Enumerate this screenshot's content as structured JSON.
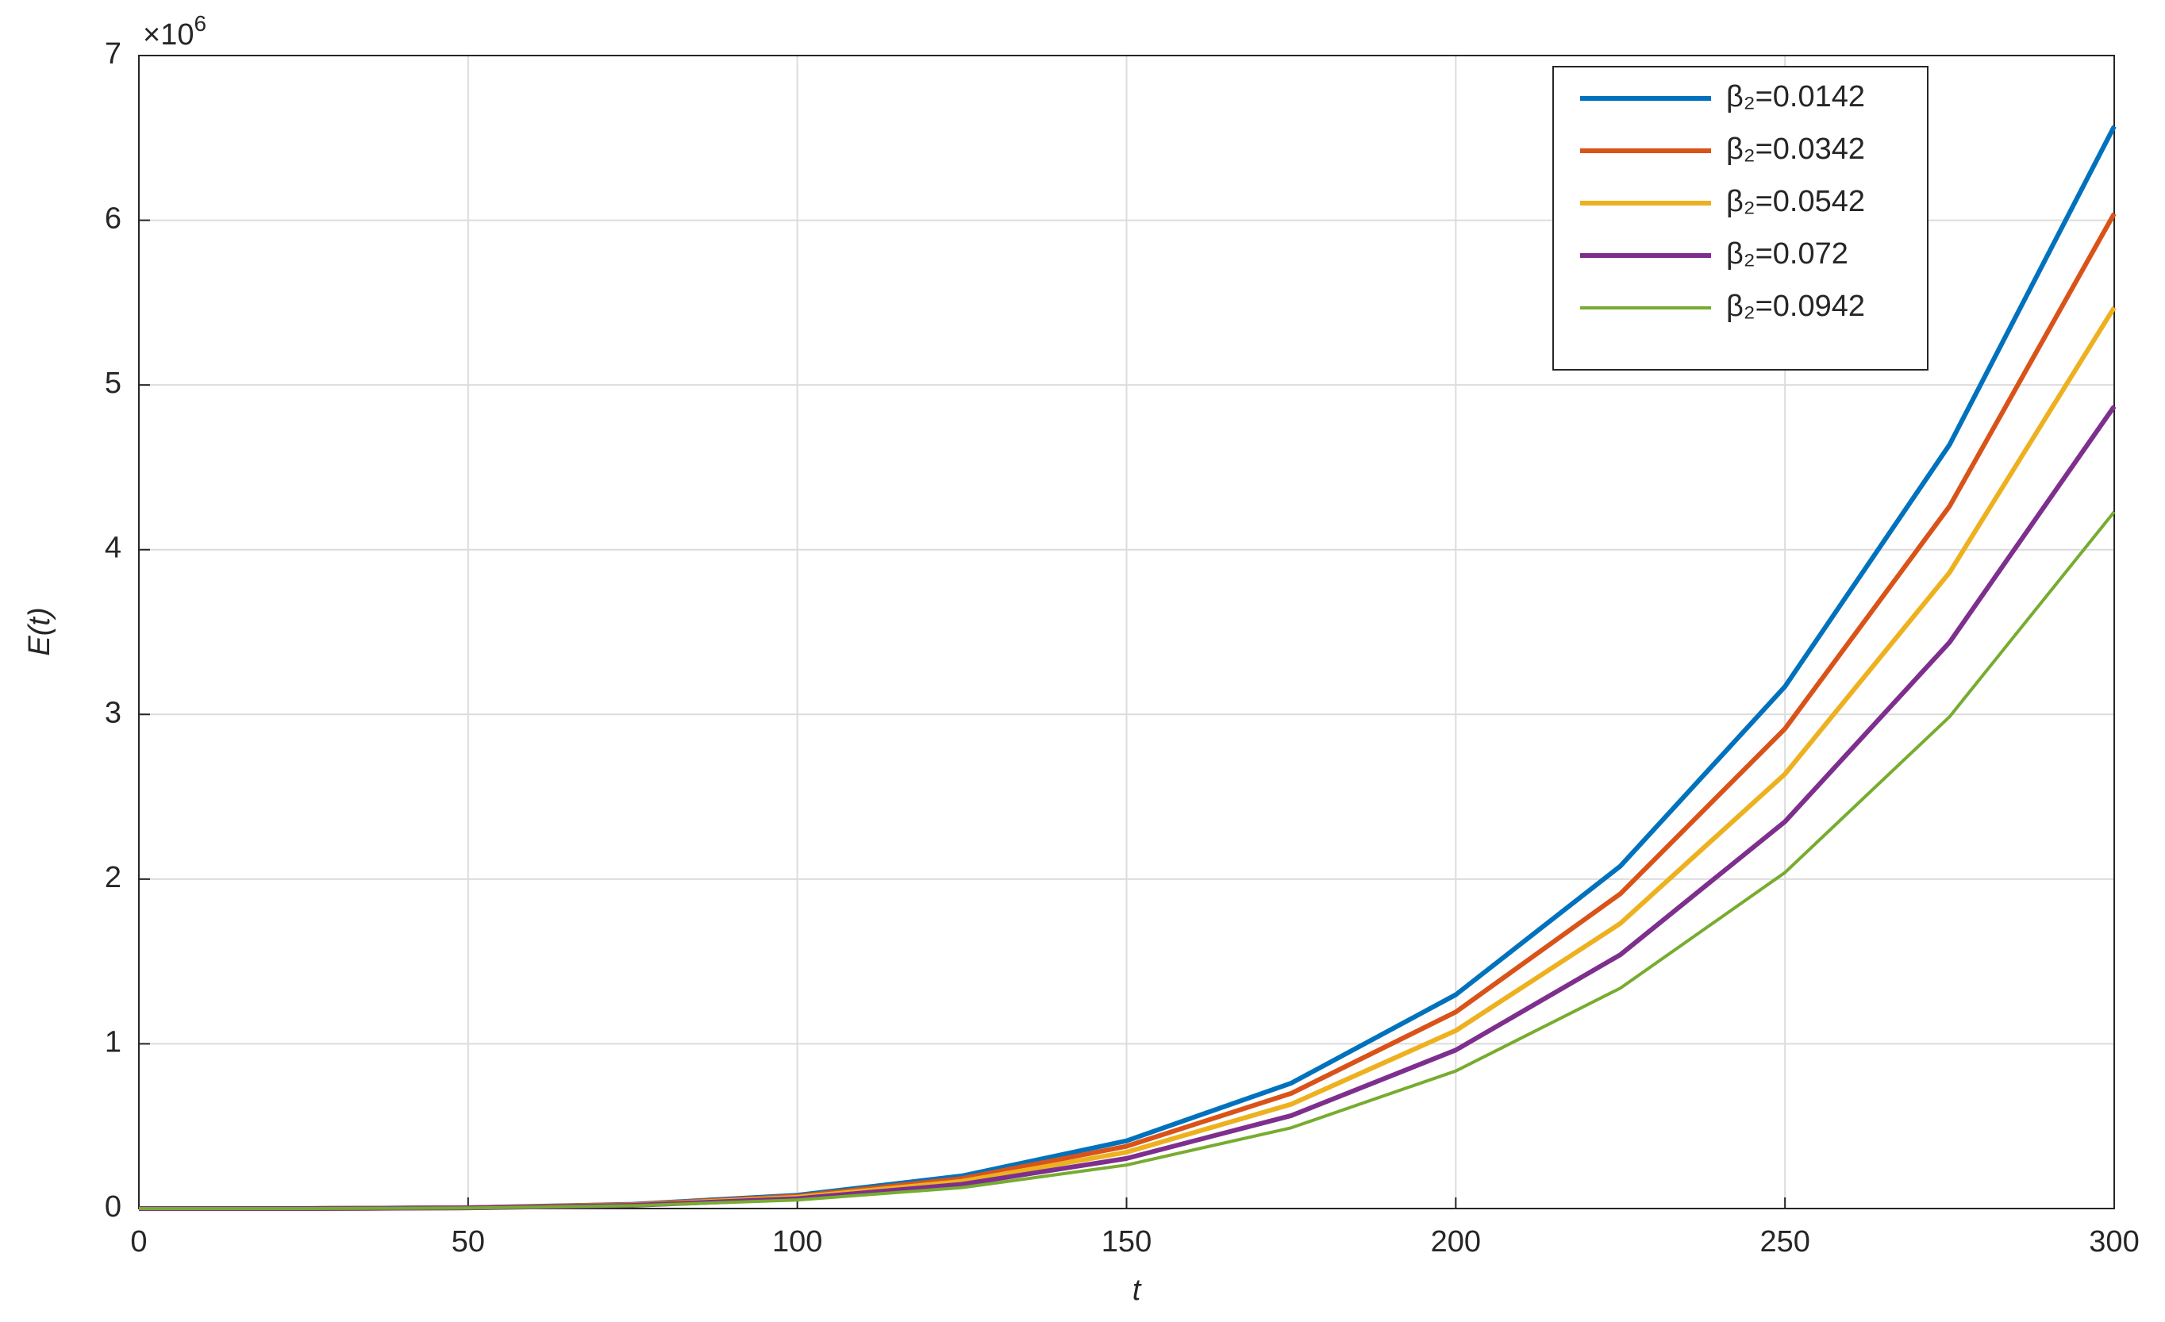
{
  "chart_data": {
    "type": "line",
    "x_label": "t",
    "y_label": "E(t)",
    "y_multiplier": {
      "base": "×10",
      "exponent": "6"
    },
    "x": [
      0,
      25,
      50,
      75,
      100,
      125,
      150,
      175,
      200,
      225,
      250,
      275,
      300
    ],
    "series": [
      {
        "name": "β₂=0.0142",
        "color": "#0072bd",
        "values": [
          0,
          0.0003,
          0.005,
          0.026,
          0.081,
          0.198,
          0.411,
          0.761,
          1.298,
          2.079,
          3.169,
          4.638,
          6.57
        ]
      },
      {
        "name": "β₂=0.0342",
        "color": "#d95319",
        "values": [
          0,
          0.0003,
          0.005,
          0.024,
          0.075,
          0.182,
          0.378,
          0.699,
          1.193,
          1.911,
          2.913,
          4.264,
          6.04
        ]
      },
      {
        "name": "β₂=0.0542",
        "color": "#edb120",
        "values": [
          0,
          0.0003,
          0.004,
          0.021,
          0.068,
          0.165,
          0.342,
          0.633,
          1.08,
          1.731,
          2.638,
          3.862,
          5.47
        ]
      },
      {
        "name": "β₂=0.072",
        "color": "#7e2f8e",
        "values": [
          0,
          0.0002,
          0.004,
          0.019,
          0.06,
          0.147,
          0.304,
          0.564,
          0.962,
          1.541,
          2.349,
          3.438,
          4.87
        ]
      },
      {
        "name": "β₂=0.0942",
        "color": "#77ac30",
        "values": [
          0,
          0.0002,
          0.003,
          0.017,
          0.052,
          0.127,
          0.264,
          0.49,
          0.835,
          1.338,
          2.04,
          2.986,
          4.23
        ]
      }
    ],
    "xlim": [
      0,
      300
    ],
    "xticks": [
      0,
      50,
      100,
      150,
      200,
      250,
      300
    ],
    "ylim": [
      0,
      7
    ],
    "yticks": [
      0,
      1,
      2,
      3,
      4,
      5,
      6,
      7
    ],
    "grid": true,
    "legend_position": "top-right"
  }
}
